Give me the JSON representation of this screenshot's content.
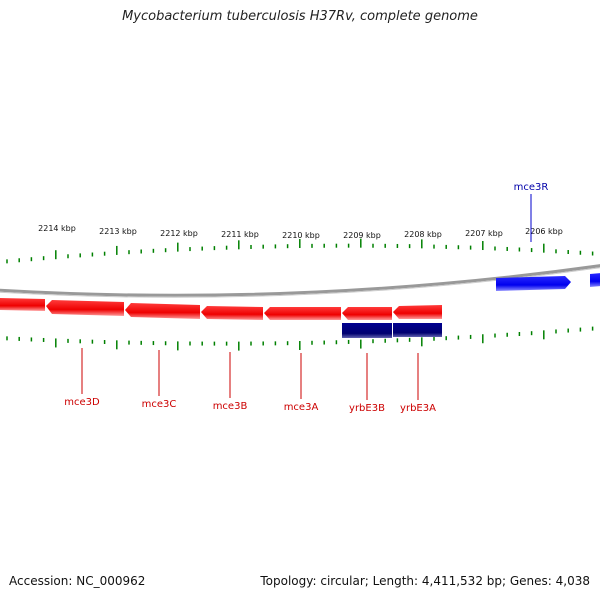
{
  "title": "Mycobacterium tuberculosis H37Rv, complete genome",
  "footer": {
    "accession": "Accession: NC_000962",
    "topology": "Topology: circular; Length: 4,411,532 bp; Genes: 4,038"
  },
  "colors": {
    "reverse_strand": "#ff0000",
    "forward_strand": "#0000ff",
    "rna_like": "#000080",
    "ticks": "#008000",
    "backbone": "#888888"
  },
  "kbp_labels": [
    "2214 kbp",
    "2213 kbp",
    "2212 kbp",
    "2211 kbp",
    "2210 kbp",
    "2209 kbp",
    "2208 kbp",
    "2207 kbp",
    "2206 kbp"
  ],
  "genes": [
    {
      "name": "mce3D",
      "strand": "reverse"
    },
    {
      "name": "mce3C",
      "strand": "reverse"
    },
    {
      "name": "mce3B",
      "strand": "reverse"
    },
    {
      "name": "mce3A",
      "strand": "reverse"
    },
    {
      "name": "yrbE3B",
      "strand": "reverse"
    },
    {
      "name": "yrbE3A",
      "strand": "reverse"
    },
    {
      "name": "mce3R",
      "strand": "forward"
    }
  ]
}
